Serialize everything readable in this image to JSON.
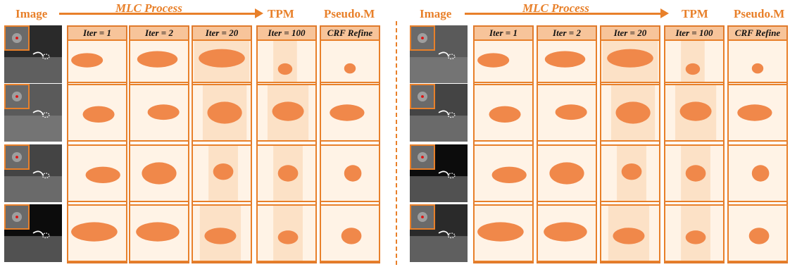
{
  "headers": {
    "image": "Image",
    "process": "MLC Process",
    "tpm": "TPM",
    "pseudo": "Pseudo.M"
  },
  "columns": [
    "Iter = 1",
    "Iter = 2",
    "Iter = 20",
    "Iter = 100",
    "CRF Refine"
  ],
  "colors": {
    "accent": "#e8802a",
    "cell_bg": "#fff3e6",
    "mask": "#f0884a",
    "mask_soft": "#fbd9b8",
    "label_bg": "#f7c49a"
  },
  "panels": [
    "left",
    "right"
  ]
}
